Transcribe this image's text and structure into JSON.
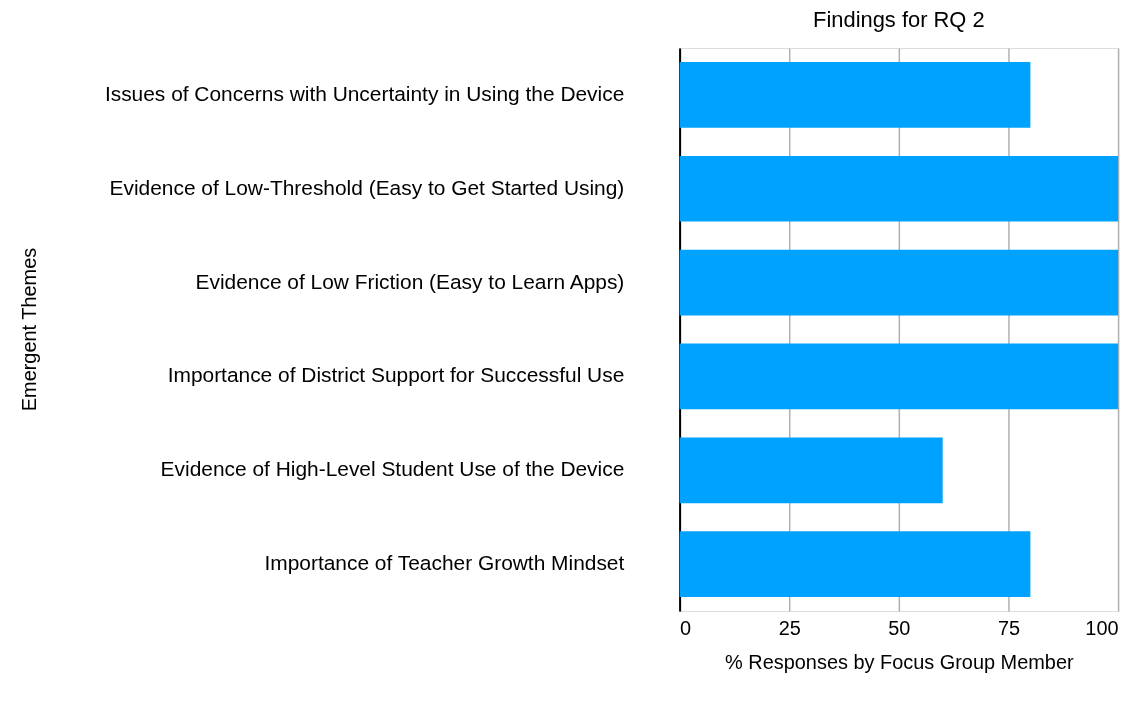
{
  "chart_data": {
    "type": "bar",
    "orientation": "horizontal",
    "title": "Findings for RQ 2",
    "xlabel": "% Responses by Focus Group Member",
    "ylabel": "Emergent Themes",
    "categories": [
      "Issues of Concerns with Uncertainty in Using the Device",
      "Evidence of Low-Threshold (Easy to Get Started Using)",
      "Evidence of Low Friction (Easy to Learn Apps)",
      "Importance of District Support for Successful Use",
      "Evidence of High-Level Student Use of the Device",
      "Importance of Teacher Growth Mindset"
    ],
    "values": [
      80,
      100,
      100,
      100,
      60,
      80
    ],
    "color": "#00a2ff",
    "xlim": [
      0,
      100
    ],
    "xticks": [
      0,
      25,
      50,
      75,
      100
    ],
    "grid": "x"
  }
}
